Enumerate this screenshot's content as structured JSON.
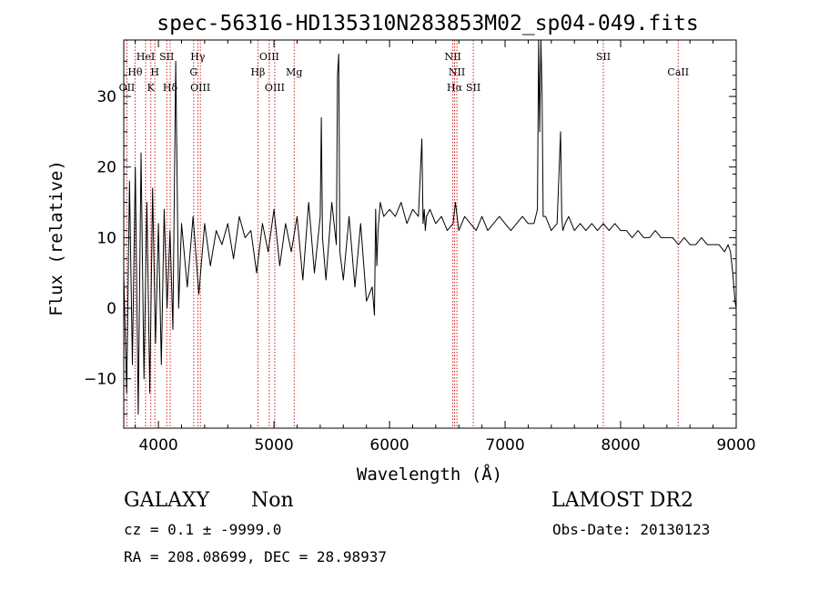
{
  "chart_data": {
    "type": "line",
    "title": "spec-56316-HD135310N283853M02_sp04-049.fits",
    "xlabel": "Wavelength (Å)",
    "ylabel": "Flux (relative)",
    "xlim": [
      3700,
      9000
    ],
    "ylim": [
      -17,
      38
    ],
    "x_ticks": [
      4000,
      5000,
      6000,
      7000,
      8000,
      9000
    ],
    "y_ticks": [
      -10,
      0,
      10,
      20,
      30
    ],
    "grid": false,
    "lines": [
      {
        "label": "OII",
        "wavelength": 3727,
        "row": 3
      },
      {
        "label": "Hθ",
        "wavelength": 3798,
        "row": 2
      },
      {
        "label": "HeI",
        "wavelength": 3889,
        "row": 1
      },
      {
        "label": "K",
        "wavelength": 3934,
        "row": 3
      },
      {
        "label": "H",
        "wavelength": 3969,
        "row": 2
      },
      {
        "label": "SII",
        "wavelength": 4072,
        "row": 1
      },
      {
        "label": "Hδ",
        "wavelength": 4102,
        "row": 3
      },
      {
        "label": "Hγ",
        "wavelength": 4341,
        "row": 1
      },
      {
        "label": "G",
        "wavelength": 4305,
        "row": 2
      },
      {
        "label": "OIII",
        "wavelength": 4363,
        "row": 3
      },
      {
        "label": "Hβ",
        "wavelength": 4861,
        "row": 2
      },
      {
        "label": "OIII",
        "wavelength": 4959,
        "row": 1
      },
      {
        "label": "OIII",
        "wavelength": 5007,
        "row": 3
      },
      {
        "label": "Mg",
        "wavelength": 5175,
        "row": 2
      },
      {
        "label": "NII",
        "wavelength": 6548,
        "row": 1
      },
      {
        "label": "NII",
        "wavelength": 6583,
        "row": 2
      },
      {
        "label": "Hα",
        "wavelength": 6563,
        "row": 3
      },
      {
        "label": "SII",
        "wavelength": 6725,
        "row": 3
      },
      {
        "label": "SII",
        "wavelength": 7850,
        "row": 1
      },
      {
        "label": "CaII",
        "wavelength": 8498,
        "row": 2
      }
    ],
    "spectrum": {
      "x": [
        3700,
        3725,
        3750,
        3775,
        3800,
        3825,
        3850,
        3875,
        3900,
        3925,
        3950,
        3975,
        4000,
        4025,
        4050,
        4075,
        4100,
        4125,
        4150,
        4175,
        4200,
        4250,
        4300,
        4350,
        4400,
        4450,
        4500,
        4550,
        4600,
        4650,
        4700,
        4750,
        4800,
        4850,
        4900,
        4950,
        5000,
        5050,
        5100,
        5150,
        5200,
        5250,
        5300,
        5350,
        5400,
        5410,
        5420,
        5450,
        5500,
        5540,
        5550,
        5560,
        5570,
        5600,
        5650,
        5700,
        5750,
        5800,
        5850,
        5870,
        5880,
        5890,
        5900,
        5920,
        5950,
        6000,
        6050,
        6100,
        6150,
        6200,
        6250,
        6280,
        6290,
        6300,
        6310,
        6320,
        6350,
        6400,
        6450,
        6500,
        6550,
        6570,
        6600,
        6650,
        6700,
        6750,
        6800,
        6850,
        6900,
        6950,
        7000,
        7050,
        7100,
        7150,
        7200,
        7250,
        7280,
        7290,
        7300,
        7310,
        7320,
        7330,
        7350,
        7400,
        7450,
        7480,
        7490,
        7500,
        7520,
        7550,
        7600,
        7650,
        7700,
        7750,
        7800,
        7850,
        7900,
        7950,
        8000,
        8050,
        8100,
        8150,
        8200,
        8250,
        8300,
        8350,
        8400,
        8450,
        8500,
        8550,
        8600,
        8650,
        8700,
        8750,
        8800,
        8850,
        8900,
        8930,
        8950,
        8970,
        8990,
        9000
      ],
      "y": [
        5,
        -12,
        18,
        -8,
        20,
        -15,
        22,
        -10,
        15,
        -12,
        17,
        -5,
        12,
        -8,
        14,
        0,
        11,
        -3,
        35,
        0,
        12,
        3,
        13,
        2,
        12,
        6,
        11,
        9,
        12,
        7,
        13,
        10,
        11,
        5,
        12,
        8,
        14,
        6,
        12,
        8,
        13,
        4,
        15,
        5,
        13,
        27,
        10,
        4,
        15,
        9,
        33,
        36,
        8,
        4,
        13,
        3,
        12,
        1,
        3,
        -1,
        14,
        6,
        11,
        15,
        13,
        14,
        13,
        15,
        12,
        14,
        13,
        24,
        12,
        14,
        11,
        13,
        14,
        12,
        13,
        11,
        12,
        15,
        11,
        13,
        12,
        11,
        13,
        11,
        12,
        13,
        12,
        11,
        12,
        13,
        12,
        12,
        14,
        38,
        25,
        38,
        30,
        13,
        13,
        11,
        12,
        25,
        13,
        11,
        12,
        13,
        11,
        12,
        11,
        12,
        11,
        12,
        11,
        12,
        11,
        11,
        10,
        11,
        10,
        10,
        11,
        10,
        10,
        10,
        9,
        10,
        9,
        9,
        10,
        9,
        9,
        9,
        8,
        9,
        8,
        5,
        1,
        0
      ]
    }
  },
  "footer": {
    "class_label": "GALAXY",
    "subclass": "Non",
    "survey": "LAMOST DR2",
    "cz": "cz = 0.1 ± -9999.0",
    "obs_date": "Obs-Date: 20130123",
    "radec": "RA = 208.08699, DEC =  28.98937"
  }
}
